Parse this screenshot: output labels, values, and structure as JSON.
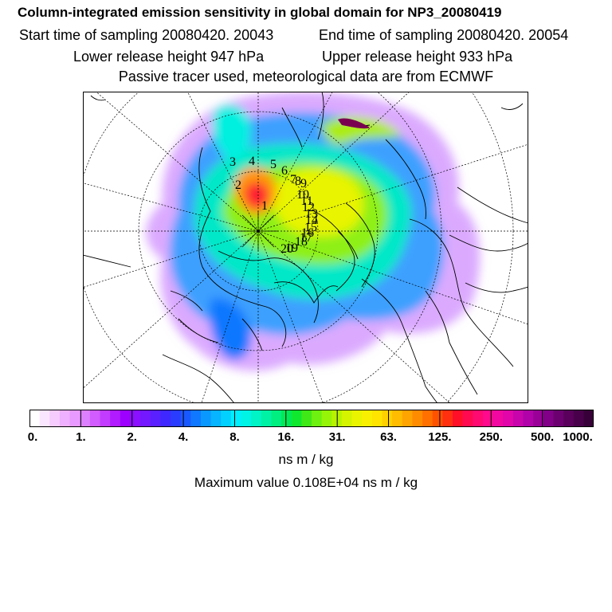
{
  "header": {
    "title": "Column-integrated emission sensitivity in global domain for NP3_20080419",
    "start_time": "Start time of sampling 20080420. 20043",
    "end_time": "End time of sampling 20080420. 20054",
    "lower_height": "Lower release height  947 hPa",
    "upper_height": "Upper release height  933 hPa",
    "tracer_note": "Passive tracer used, meteorological data are from ECMWF"
  },
  "map": {
    "projection": "north-polar-stereographic",
    "trajectory_labels": [
      "1",
      "2",
      "3",
      "4",
      "5",
      "6",
      "7",
      "8",
      "9",
      "10",
      "11",
      "12",
      "13",
      "14",
      "15",
      "16",
      "17",
      "18",
      "19",
      "20"
    ]
  },
  "colorbar": {
    "ticks": [
      "0.",
      "1.",
      "2.",
      "4.",
      "8.",
      "16.",
      "31.",
      "63.",
      "125.",
      "250.",
      "500.",
      "1000."
    ],
    "colors": [
      "#ffffff",
      "#fbe6ff",
      "#f6ccff",
      "#efb0ff",
      "#e89aff",
      "#dd80ff",
      "#d25cff",
      "#c23cff",
      "#b01cff",
      "#9d00ff",
      "#8a10ff",
      "#7318ff",
      "#5a20ff",
      "#3f28ff",
      "#2a3cff",
      "#1a58ff",
      "#1078ff",
      "#0a98ff",
      "#06b4ff",
      "#02d0ff",
      "#00eeff",
      "#00f4e6",
      "#00f4c6",
      "#00f2a4",
      "#00ef80",
      "#00ea58",
      "#10e830",
      "#40e818",
      "#6ef010",
      "#96f408",
      "#b8f400",
      "#d4f400",
      "#eaf400",
      "#f8f000",
      "#ffe400",
      "#ffd000",
      "#ffbc00",
      "#ffa400",
      "#ff8c00",
      "#ff7000",
      "#ff5200",
      "#ff3010",
      "#ff1028",
      "#ff0a50",
      "#ff0a70",
      "#ff0a8c",
      "#f008a0",
      "#e006aa",
      "#c804ac",
      "#b002a8",
      "#9a0098",
      "#820088",
      "#6c0070",
      "#5a005c",
      "#48004a",
      "#380038"
    ],
    "units": "ns m / kg",
    "max_value": "Maximum value  0.108E+04 ns m / kg"
  }
}
